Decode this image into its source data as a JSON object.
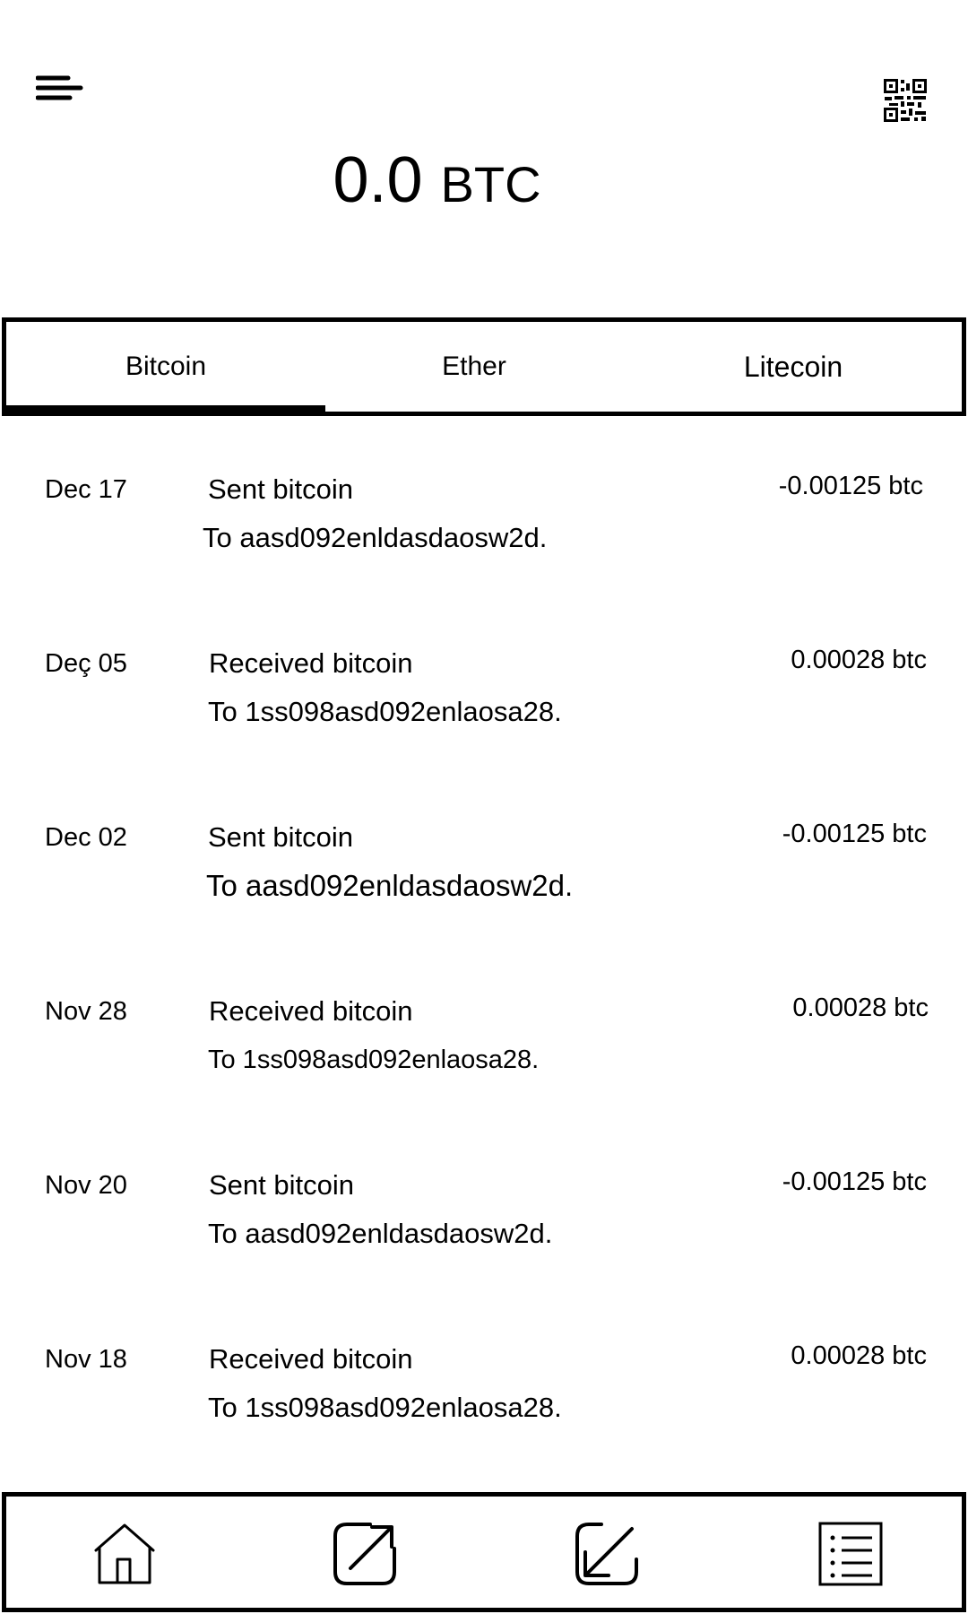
{
  "header": {
    "menu_icon": "menu-icon",
    "qr_icon": "qr-code-icon",
    "balance_value": "0.0",
    "balance_unit": "BTC"
  },
  "tabs": [
    {
      "label": "Bitcoin",
      "selected": true
    },
    {
      "label": "Ether",
      "selected": false
    },
    {
      "label": "Litecoin",
      "selected": false
    }
  ],
  "transactions": [
    {
      "date": "Dec 17",
      "title": "Sent bitcoin",
      "address": "To aasd092enldasdaosw2d.",
      "amount": "-0.00125 btc"
    },
    {
      "date": "Deç 05",
      "title": "Received bitcoin",
      "address": "To 1ss098asd092enlaosa28.",
      "amount": "0.00028 btc"
    },
    {
      "date": "Dec 02",
      "title": "Sent bitcoin",
      "address": "To aasd092enldasdaosw2d.",
      "amount": "-0.00125 btc"
    },
    {
      "date": "Nov 28",
      "title": "Received bitcoin",
      "address": "To 1ss098asd092enlaosa28.",
      "amount": "0.00028 btc"
    },
    {
      "date": "Nov 20",
      "title": "Sent bitcoin",
      "address": "To aasd092enldasdaosw2d.",
      "amount": "-0.00125 btc"
    },
    {
      "date": "Nov 18",
      "title": "Received bitcoin",
      "address": "To 1ss098asd092enlaosa28.",
      "amount": "0.00028 btc"
    }
  ],
  "bottom_nav": [
    {
      "icon": "home-icon"
    },
    {
      "icon": "send-icon"
    },
    {
      "icon": "receive-icon"
    },
    {
      "icon": "list-icon"
    }
  ],
  "colors": {
    "foreground": "#000000",
    "background": "#ffffff"
  }
}
